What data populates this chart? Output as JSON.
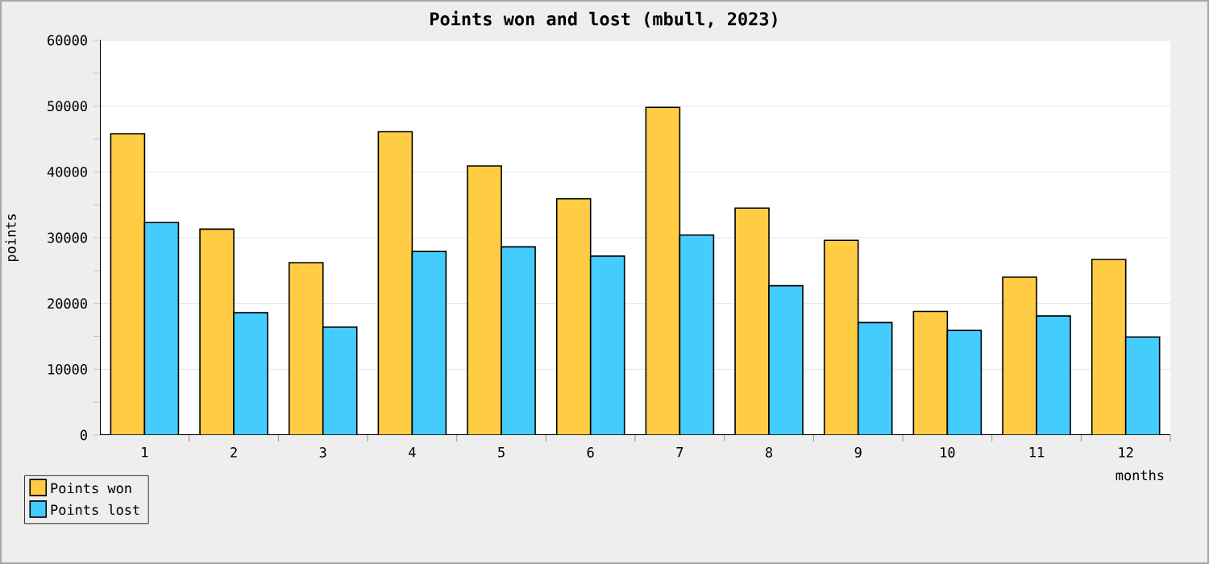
{
  "chart_data": {
    "type": "bar",
    "title": "Points won and lost (mbull, 2023)",
    "xlabel": "months",
    "ylabel": "points",
    "categories": [
      "1",
      "2",
      "3",
      "4",
      "5",
      "6",
      "7",
      "8",
      "9",
      "10",
      "11",
      "12"
    ],
    "series": [
      {
        "name": "Points won",
        "color": "#ffcc44",
        "values": [
          45800,
          31300,
          26200,
          46100,
          40900,
          35900,
          49800,
          34500,
          29600,
          18800,
          24000,
          26700
        ]
      },
      {
        "name": "Points lost",
        "color": "#44ccff",
        "values": [
          32300,
          18600,
          16400,
          27900,
          28600,
          27200,
          30400,
          22700,
          17100,
          15900,
          18100,
          14900
        ]
      }
    ],
    "ylim": [
      0,
      60000
    ],
    "yticks": [
      0,
      10000,
      20000,
      30000,
      40000,
      50000,
      60000
    ],
    "grid": "y",
    "legend": "bottom left"
  }
}
